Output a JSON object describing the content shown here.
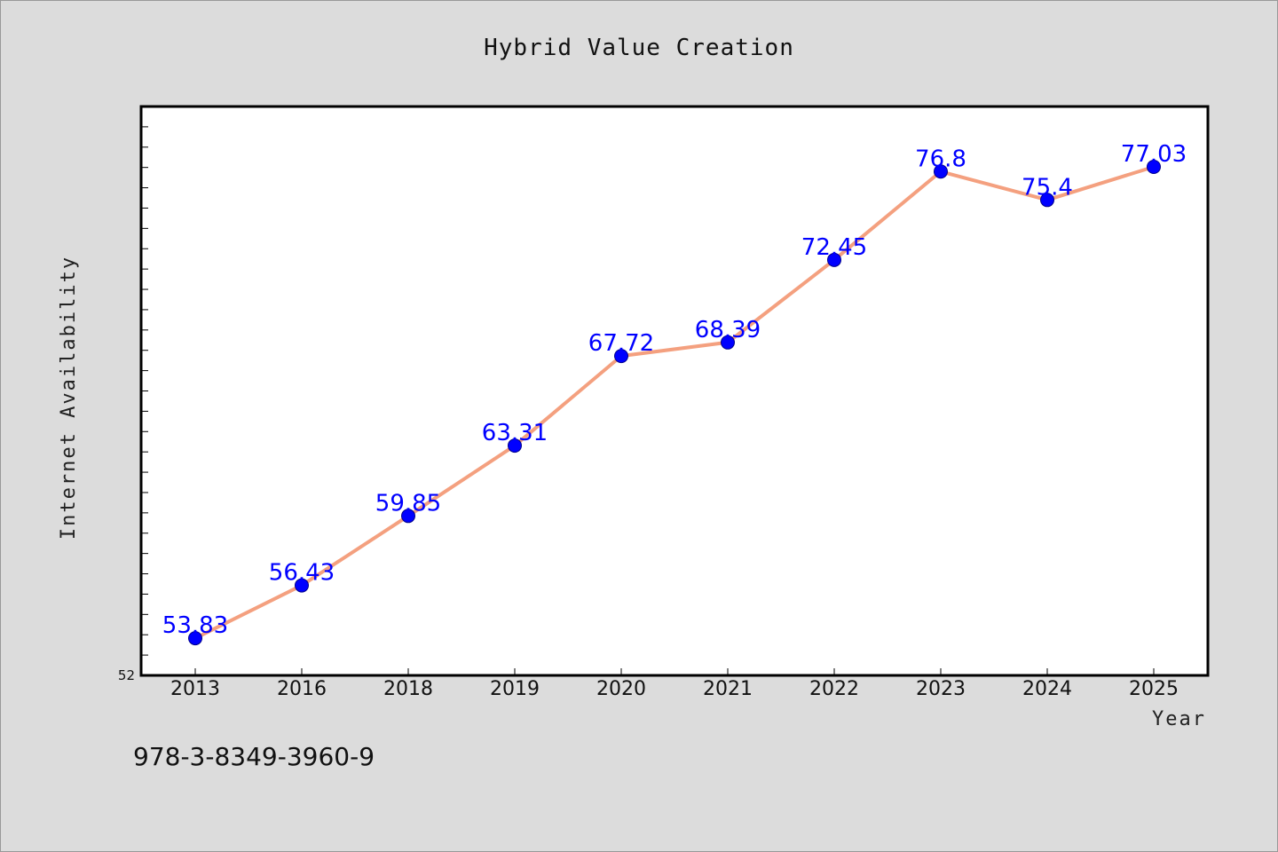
{
  "chart_data": {
    "type": "line",
    "title": "Hybrid Value Creation",
    "xlabel": "Year",
    "ylabel": "Internet Availability",
    "categories": [
      "2013",
      "2016",
      "2018",
      "2019",
      "2020",
      "2021",
      "2022",
      "2023",
      "2024",
      "2025"
    ],
    "series": [
      {
        "values": [
          53.83,
          56.43,
          59.85,
          63.31,
          67.72,
          68.39,
          72.45,
          76.8,
          75.4,
          77.03
        ],
        "labels": [
          "53.83",
          "56.43",
          "59.85",
          "63.31",
          "67.72",
          "68.39",
          "72.45",
          "76.8",
          "75.4",
          "77.03"
        ],
        "line_color": "#f4a07f",
        "marker_color": "#0000ff"
      }
    ],
    "ylim": [
      52,
      80
    ],
    "yticks_labeled": [
      "52"
    ],
    "grid": false,
    "legend": "none"
  },
  "footer_text": "978-3-8349-3960-9",
  "colors": {
    "background": "#dcdcdc",
    "plot_background": "#ffffff",
    "line": "#f4a07f",
    "marker": "#0000ff",
    "data_label": "#0000ff"
  }
}
